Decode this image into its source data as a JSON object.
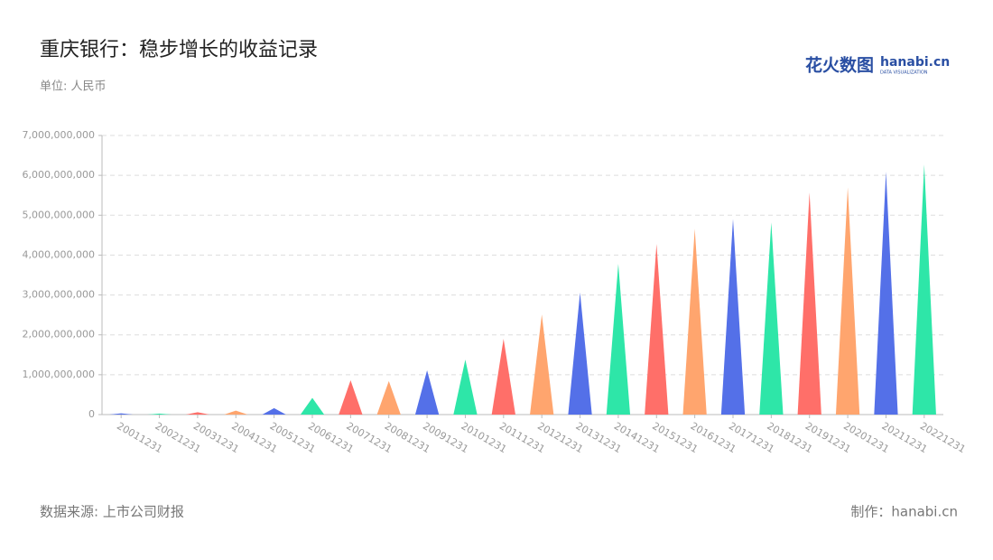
{
  "title": "重庆银行：稳步增长的收益记录",
  "subtitle": "单位: 人民币",
  "source": "数据来源: 上市公司财报",
  "credit": "制作：hanabi.cn",
  "logo": {
    "brand": "花火数图",
    "site": "hanabi.cn",
    "tagline": "DATA VISUALIZATION"
  },
  "chart_data": {
    "type": "bar",
    "shape": "triangle",
    "categories": [
      "20011231",
      "20021231",
      "20031231",
      "20041231",
      "20051231",
      "20061231",
      "20071231",
      "20081231",
      "20091231",
      "20101231",
      "20111231",
      "20121231",
      "20131231",
      "20141231",
      "20151231",
      "20161231",
      "20171231",
      "20181231",
      "20191231",
      "20201231",
      "20211231",
      "20221231"
    ],
    "values": [
      30000000,
      25000000,
      60000000,
      100000000,
      160000000,
      420000000,
      860000000,
      840000000,
      1110000000,
      1380000000,
      1900000000,
      2510000000,
      3060000000,
      3780000000,
      4280000000,
      4660000000,
      4910000000,
      4820000000,
      5570000000,
      5700000000,
      6090000000,
      6270000000
    ],
    "colors": [
      "#5470e8",
      "#2ee6a8",
      "#ff6f69",
      "#ffa56e"
    ],
    "ylim": [
      0,
      7000000000
    ],
    "yticks": [
      0,
      {
        "value": 1000000000,
        "label": "1,000,000,000"
      },
      {
        "value": 2000000000,
        "label": "2,000,000,000"
      },
      {
        "value": 3000000000,
        "label": "3,000,000,000"
      },
      {
        "value": 4000000000,
        "label": "4,000,000,000"
      },
      {
        "value": 5000000000,
        "label": "5,000,000,000"
      },
      {
        "value": 6000000000,
        "label": "6,000,000,000"
      },
      {
        "value": 7000000000,
        "label": "7,000,000,000"
      }
    ],
    "grid": true
  }
}
